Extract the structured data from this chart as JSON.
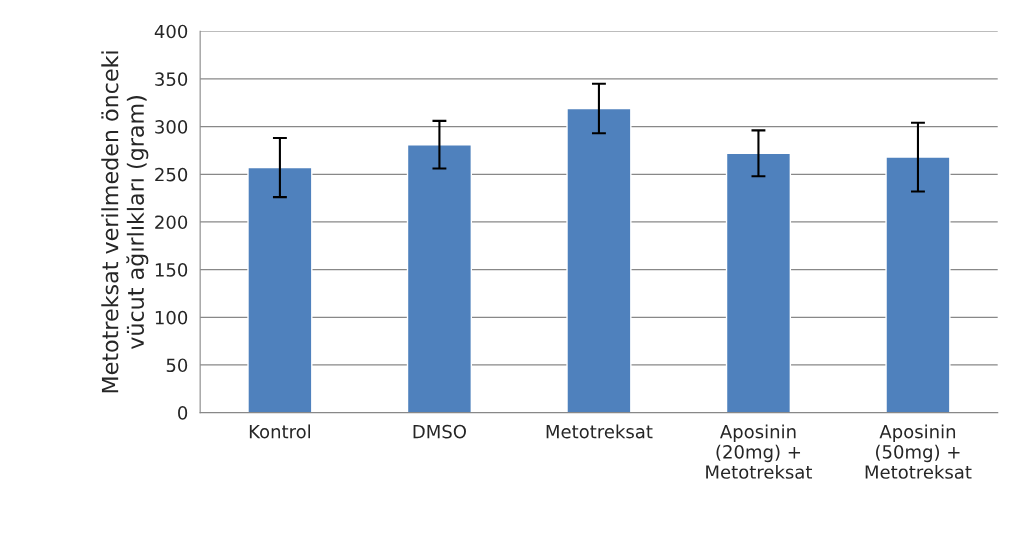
{
  "chart_data": {
    "type": "bar",
    "ylabel": "Metotreksat verilmeden önceki\nvücut ağırlıkları (gram)",
    "categories": [
      "Kontrol",
      "DMSO",
      "Metotreksat",
      "Aposinin\n(20mg) +\nMetotreksat",
      "Aposinin\n(50mg) +\nMetotreksat"
    ],
    "values": [
      257,
      281,
      319,
      272,
      268
    ],
    "errors": [
      31,
      25,
      26,
      24,
      36
    ],
    "color": "#4f81bd",
    "ylim": [
      0,
      400
    ],
    "yticks": [
      0,
      50,
      100,
      150,
      200,
      250,
      300,
      350,
      400
    ],
    "grid": "y",
    "legend": false
  }
}
